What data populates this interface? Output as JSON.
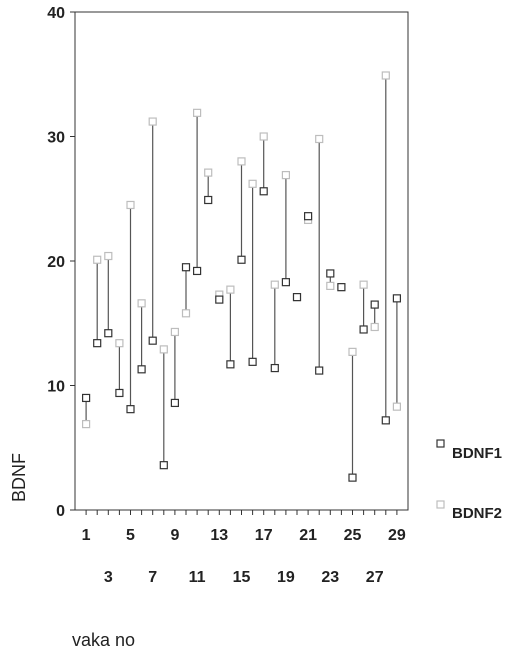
{
  "chart_data": {
    "type": "scatter",
    "subtype": "high-low",
    "xlabel": "vaka no",
    "ylabel": "BDNF",
    "ylim": [
      0,
      40
    ],
    "xlim": [
      0,
      30
    ],
    "y_ticks": [
      0,
      10,
      20,
      30,
      40
    ],
    "x_ticks_row1": [
      1,
      5,
      9,
      13,
      17,
      21,
      25,
      29
    ],
    "x_ticks_row2": [
      3,
      7,
      11,
      15,
      19,
      23,
      27
    ],
    "legend": {
      "position": "right",
      "entries": [
        "BDNF1",
        "BDNF2"
      ]
    },
    "colors": {
      "BDNF1": "#333333",
      "BDNF2": "#bdbdbd",
      "line": "#555555"
    },
    "series": [
      {
        "name": "BDNF1",
        "x": [
          1,
          2,
          3,
          4,
          5,
          6,
          7,
          8,
          9,
          10,
          11,
          12,
          13,
          14,
          15,
          16,
          17,
          18,
          19,
          20,
          21,
          22,
          23,
          24,
          25,
          26,
          27,
          28,
          29
        ],
        "values": [
          9.0,
          13.4,
          14.2,
          9.4,
          8.1,
          11.3,
          13.6,
          3.6,
          8.6,
          19.5,
          19.2,
          24.9,
          16.9,
          11.7,
          20.1,
          11.9,
          25.6,
          11.4,
          18.3,
          17.1,
          23.6,
          11.2,
          19.0,
          17.9,
          2.6,
          14.5,
          16.5,
          7.2,
          17.0
        ]
      },
      {
        "name": "BDNF2",
        "x": [
          1,
          2,
          3,
          4,
          5,
          6,
          7,
          8,
          9,
          10,
          11,
          12,
          13,
          14,
          15,
          16,
          17,
          18,
          19,
          20,
          21,
          22,
          23,
          24,
          25,
          26,
          27,
          28,
          29
        ],
        "values": [
          6.9,
          20.1,
          20.4,
          13.4,
          24.5,
          16.6,
          31.2,
          12.9,
          14.3,
          15.8,
          31.9,
          27.1,
          17.3,
          17.7,
          28.0,
          26.2,
          30.0,
          18.1,
          26.9,
          17.1,
          23.3,
          29.8,
          18.0,
          17.9,
          12.7,
          18.1,
          14.7,
          34.9,
          8.3
        ]
      }
    ]
  }
}
